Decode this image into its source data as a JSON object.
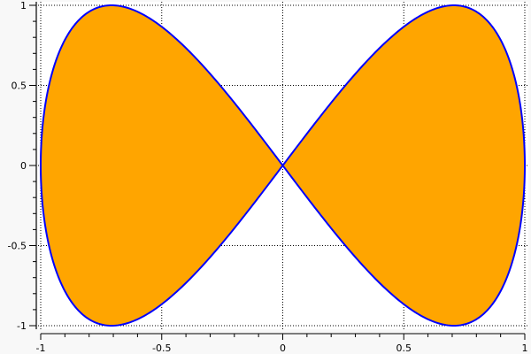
{
  "chart_data": {
    "type": "area",
    "parametric": "x = cos(t), y = sin(2t)",
    "xlim": [
      -1,
      1
    ],
    "ylim": [
      -1,
      1
    ],
    "x_ticks": [
      "-1",
      "-0.5",
      "0",
      "0.5",
      "1"
    ],
    "y_ticks": [
      "1",
      "0.5",
      "0",
      "-0.5",
      "-1"
    ],
    "grid": true,
    "fill_color": "#ffa500",
    "line_color": "#0000ff",
    "legend": "none"
  }
}
